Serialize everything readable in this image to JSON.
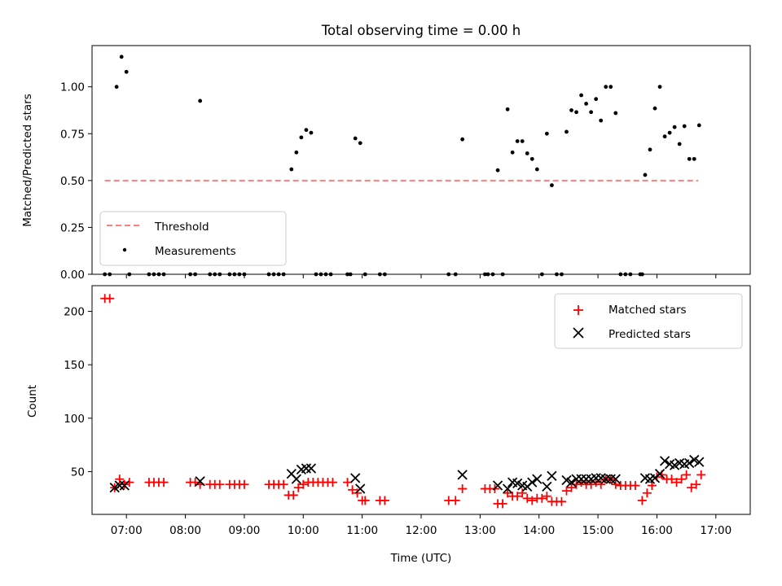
{
  "title": "Total observing time = 0.00 h",
  "chart_data": [
    {
      "type": "scatter",
      "ylabel": "Matched/Predicted stars",
      "ylim": [
        0,
        1.22
      ],
      "xlim": [
        "06:25",
        "17:35"
      ],
      "yticks": [
        0.0,
        0.25,
        0.5,
        0.75,
        1.0
      ],
      "ytick_labels": [
        "0.00",
        "0.25",
        "0.50",
        "0.75",
        "1.00"
      ],
      "legend_position": "lower-left",
      "threshold": {
        "name": "Threshold",
        "value": 0.5,
        "x_start": "06:38",
        "x_end": "16:42",
        "color": "#ff7f7f"
      },
      "series": [
        {
          "name": "Measurements",
          "color": "#000000",
          "points": [
            {
              "x": "06:50",
              "y": 1.0
            },
            {
              "x": "06:55",
              "y": 1.16
            },
            {
              "x": "07:00",
              "y": 1.08
            },
            {
              "x": "08:15",
              "y": 0.925
            },
            {
              "x": "09:48",
              "y": 0.56
            },
            {
              "x": "09:53",
              "y": 0.65
            },
            {
              "x": "09:58",
              "y": 0.73
            },
            {
              "x": "10:03",
              "y": 0.77
            },
            {
              "x": "10:08",
              "y": 0.755
            },
            {
              "x": "10:53",
              "y": 0.725
            },
            {
              "x": "10:58",
              "y": 0.7
            },
            {
              "x": "12:42",
              "y": 0.72
            },
            {
              "x": "13:18",
              "y": 0.555
            },
            {
              "x": "13:28",
              "y": 0.88
            },
            {
              "x": "13:33",
              "y": 0.65
            },
            {
              "x": "13:38",
              "y": 0.71
            },
            {
              "x": "13:43",
              "y": 0.71
            },
            {
              "x": "13:48",
              "y": 0.645
            },
            {
              "x": "13:53",
              "y": 0.615
            },
            {
              "x": "13:58",
              "y": 0.56
            },
            {
              "x": "14:08",
              "y": 0.75
            },
            {
              "x": "14:13",
              "y": 0.475
            },
            {
              "x": "14:28",
              "y": 0.76
            },
            {
              "x": "14:33",
              "y": 0.875
            },
            {
              "x": "14:38",
              "y": 0.865
            },
            {
              "x": "14:43",
              "y": 0.955
            },
            {
              "x": "14:48",
              "y": 0.91
            },
            {
              "x": "14:53",
              "y": 0.865
            },
            {
              "x": "14:58",
              "y": 0.935
            },
            {
              "x": "15:03",
              "y": 0.82
            },
            {
              "x": "15:08",
              "y": 1.0
            },
            {
              "x": "15:13",
              "y": 1.0
            },
            {
              "x": "15:18",
              "y": 0.86
            },
            {
              "x": "15:48",
              "y": 0.53
            },
            {
              "x": "15:53",
              "y": 0.665
            },
            {
              "x": "15:58",
              "y": 0.885
            },
            {
              "x": "16:03",
              "y": 1.0
            },
            {
              "x": "16:08",
              "y": 0.735
            },
            {
              "x": "16:13",
              "y": 0.755
            },
            {
              "x": "16:18",
              "y": 0.785
            },
            {
              "x": "16:23",
              "y": 0.695
            },
            {
              "x": "16:28",
              "y": 0.79
            },
            {
              "x": "16:33",
              "y": 0.615
            },
            {
              "x": "16:38",
              "y": 0.615
            },
            {
              "x": "16:43",
              "y": 0.795
            },
            {
              "x": "06:38",
              "y": 0
            },
            {
              "x": "06:43",
              "y": 0
            },
            {
              "x": "07:03",
              "y": 0
            },
            {
              "x": "07:23",
              "y": 0
            },
            {
              "x": "07:28",
              "y": 0
            },
            {
              "x": "07:33",
              "y": 0
            },
            {
              "x": "07:38",
              "y": 0
            },
            {
              "x": "08:05",
              "y": 0
            },
            {
              "x": "08:10",
              "y": 0
            },
            {
              "x": "08:25",
              "y": 0
            },
            {
              "x": "08:30",
              "y": 0
            },
            {
              "x": "08:35",
              "y": 0
            },
            {
              "x": "08:45",
              "y": 0
            },
            {
              "x": "08:50",
              "y": 0
            },
            {
              "x": "08:55",
              "y": 0
            },
            {
              "x": "09:00",
              "y": 0
            },
            {
              "x": "09:25",
              "y": 0
            },
            {
              "x": "09:30",
              "y": 0
            },
            {
              "x": "09:35",
              "y": 0
            },
            {
              "x": "09:40",
              "y": 0
            },
            {
              "x": "10:13",
              "y": 0
            },
            {
              "x": "10:18",
              "y": 0
            },
            {
              "x": "10:23",
              "y": 0
            },
            {
              "x": "10:28",
              "y": 0
            },
            {
              "x": "10:45",
              "y": 0
            },
            {
              "x": "10:48",
              "y": 0
            },
            {
              "x": "11:03",
              "y": 0
            },
            {
              "x": "11:18",
              "y": 0
            },
            {
              "x": "11:23",
              "y": 0
            },
            {
              "x": "12:28",
              "y": 0
            },
            {
              "x": "12:35",
              "y": 0
            },
            {
              "x": "13:05",
              "y": 0
            },
            {
              "x": "13:08",
              "y": 0
            },
            {
              "x": "13:13",
              "y": 0
            },
            {
              "x": "13:23",
              "y": 0
            },
            {
              "x": "14:03",
              "y": 0
            },
            {
              "x": "14:18",
              "y": 0
            },
            {
              "x": "14:23",
              "y": 0
            },
            {
              "x": "15:23",
              "y": 0
            },
            {
              "x": "15:28",
              "y": 0
            },
            {
              "x": "15:33",
              "y": 0
            },
            {
              "x": "15:43",
              "y": 0
            },
            {
              "x": "15:45",
              "y": 0
            }
          ]
        }
      ]
    },
    {
      "type": "scatter",
      "xlabel": "Time (UTC)",
      "ylabel": "Count",
      "ylim": [
        10,
        224
      ],
      "xlim": [
        "06:25",
        "17:35"
      ],
      "yticks": [
        50,
        100,
        150,
        200
      ],
      "ytick_labels": [
        "50",
        "100",
        "150",
        "200"
      ],
      "xticks": [
        "07:00",
        "08:00",
        "09:00",
        "10:00",
        "11:00",
        "12:00",
        "13:00",
        "14:00",
        "15:00",
        "16:00",
        "17:00"
      ],
      "legend_position": "upper-right",
      "series": [
        {
          "name": "Matched stars",
          "marker": "plus",
          "color": "#ff0000",
          "points": [
            {
              "x": "06:38",
              "y": 212
            },
            {
              "x": "06:43",
              "y": 212
            },
            {
              "x": "06:48",
              "y": 35
            },
            {
              "x": "06:53",
              "y": 43
            },
            {
              "x": "06:58",
              "y": 38
            },
            {
              "x": "07:03",
              "y": 40
            },
            {
              "x": "07:23",
              "y": 40
            },
            {
              "x": "07:28",
              "y": 40
            },
            {
              "x": "07:33",
              "y": 40
            },
            {
              "x": "07:38",
              "y": 40
            },
            {
              "x": "08:05",
              "y": 40
            },
            {
              "x": "08:10",
              "y": 40
            },
            {
              "x": "08:15",
              "y": 38
            },
            {
              "x": "08:25",
              "y": 38
            },
            {
              "x": "08:30",
              "y": 38
            },
            {
              "x": "08:35",
              "y": 38
            },
            {
              "x": "08:45",
              "y": 38
            },
            {
              "x": "08:50",
              "y": 38
            },
            {
              "x": "08:55",
              "y": 38
            },
            {
              "x": "09:00",
              "y": 38
            },
            {
              "x": "09:25",
              "y": 38
            },
            {
              "x": "09:30",
              "y": 38
            },
            {
              "x": "09:35",
              "y": 38
            },
            {
              "x": "09:40",
              "y": 38
            },
            {
              "x": "09:45",
              "y": 28
            },
            {
              "x": "09:50",
              "y": 28
            },
            {
              "x": "09:55",
              "y": 35
            },
            {
              "x": "10:00",
              "y": 38
            },
            {
              "x": "10:05",
              "y": 40
            },
            {
              "x": "10:10",
              "y": 40
            },
            {
              "x": "10:15",
              "y": 40
            },
            {
              "x": "10:20",
              "y": 40
            },
            {
              "x": "10:25",
              "y": 40
            },
            {
              "x": "10:30",
              "y": 40
            },
            {
              "x": "10:45",
              "y": 40
            },
            {
              "x": "10:50",
              "y": 33
            },
            {
              "x": "10:55",
              "y": 30
            },
            {
              "x": "11:00",
              "y": 23
            },
            {
              "x": "11:03",
              "y": 23
            },
            {
              "x": "11:18",
              "y": 23
            },
            {
              "x": "11:23",
              "y": 23
            },
            {
              "x": "12:28",
              "y": 23
            },
            {
              "x": "12:35",
              "y": 23
            },
            {
              "x": "12:42",
              "y": 34
            },
            {
              "x": "13:05",
              "y": 34
            },
            {
              "x": "13:10",
              "y": 34
            },
            {
              "x": "13:15",
              "y": 34
            },
            {
              "x": "13:18",
              "y": 20
            },
            {
              "x": "13:23",
              "y": 20
            },
            {
              "x": "13:28",
              "y": 30
            },
            {
              "x": "13:33",
              "y": 27
            },
            {
              "x": "13:38",
              "y": 27
            },
            {
              "x": "13:43",
              "y": 30
            },
            {
              "x": "13:48",
              "y": 25
            },
            {
              "x": "13:53",
              "y": 23
            },
            {
              "x": "13:58",
              "y": 25
            },
            {
              "x": "14:03",
              "y": 25
            },
            {
              "x": "14:08",
              "y": 27
            },
            {
              "x": "14:13",
              "y": 22
            },
            {
              "x": "14:18",
              "y": 22
            },
            {
              "x": "14:23",
              "y": 22
            },
            {
              "x": "14:28",
              "y": 32
            },
            {
              "x": "14:33",
              "y": 35
            },
            {
              "x": "14:38",
              "y": 38
            },
            {
              "x": "14:43",
              "y": 40
            },
            {
              "x": "14:48",
              "y": 38
            },
            {
              "x": "14:53",
              "y": 38
            },
            {
              "x": "14:58",
              "y": 40
            },
            {
              "x": "15:03",
              "y": 38
            },
            {
              "x": "15:08",
              "y": 43
            },
            {
              "x": "15:13",
              "y": 43
            },
            {
              "x": "15:18",
              "y": 38
            },
            {
              "x": "15:23",
              "y": 37
            },
            {
              "x": "15:28",
              "y": 37
            },
            {
              "x": "15:33",
              "y": 37
            },
            {
              "x": "15:38",
              "y": 37
            },
            {
              "x": "15:45",
              "y": 23
            },
            {
              "x": "15:50",
              "y": 30
            },
            {
              "x": "15:55",
              "y": 37
            },
            {
              "x": "16:00",
              "y": 45
            },
            {
              "x": "16:05",
              "y": 47
            },
            {
              "x": "16:10",
              "y": 43
            },
            {
              "x": "16:15",
              "y": 43
            },
            {
              "x": "16:20",
              "y": 40
            },
            {
              "x": "16:25",
              "y": 43
            },
            {
              "x": "16:30",
              "y": 47
            },
            {
              "x": "16:35",
              "y": 35
            },
            {
              "x": "16:40",
              "y": 38
            },
            {
              "x": "16:45",
              "y": 47
            }
          ]
        },
        {
          "name": "Predicted stars",
          "marker": "x",
          "color": "#000000",
          "points": [
            {
              "x": "06:48",
              "y": 35
            },
            {
              "x": "06:53",
              "y": 37
            },
            {
              "x": "06:58",
              "y": 37
            },
            {
              "x": "08:15",
              "y": 41
            },
            {
              "x": "09:48",
              "y": 48
            },
            {
              "x": "09:53",
              "y": 43
            },
            {
              "x": "09:58",
              "y": 52
            },
            {
              "x": "10:03",
              "y": 53
            },
            {
              "x": "10:08",
              "y": 53
            },
            {
              "x": "10:53",
              "y": 44
            },
            {
              "x": "10:58",
              "y": 34
            },
            {
              "x": "12:42",
              "y": 47
            },
            {
              "x": "13:18",
              "y": 37
            },
            {
              "x": "13:28",
              "y": 34
            },
            {
              "x": "13:33",
              "y": 40
            },
            {
              "x": "13:38",
              "y": 39
            },
            {
              "x": "13:43",
              "y": 37
            },
            {
              "x": "13:48",
              "y": 36
            },
            {
              "x": "13:53",
              "y": 40
            },
            {
              "x": "13:58",
              "y": 43
            },
            {
              "x": "14:08",
              "y": 36
            },
            {
              "x": "14:13",
              "y": 46
            },
            {
              "x": "14:28",
              "y": 42
            },
            {
              "x": "14:33",
              "y": 40
            },
            {
              "x": "14:38",
              "y": 43
            },
            {
              "x": "14:43",
              "y": 43
            },
            {
              "x": "14:48",
              "y": 43
            },
            {
              "x": "14:53",
              "y": 43
            },
            {
              "x": "14:58",
              "y": 44
            },
            {
              "x": "15:03",
              "y": 44
            },
            {
              "x": "15:08",
              "y": 43
            },
            {
              "x": "15:13",
              "y": 43
            },
            {
              "x": "15:18",
              "y": 43
            },
            {
              "x": "15:48",
              "y": 44
            },
            {
              "x": "15:53",
              "y": 43
            },
            {
              "x": "15:58",
              "y": 44
            },
            {
              "x": "16:03",
              "y": 48
            },
            {
              "x": "16:08",
              "y": 60
            },
            {
              "x": "16:13",
              "y": 57
            },
            {
              "x": "16:18",
              "y": 56
            },
            {
              "x": "16:23",
              "y": 58
            },
            {
              "x": "16:28",
              "y": 57
            },
            {
              "x": "16:33",
              "y": 58
            },
            {
              "x": "16:38",
              "y": 61
            },
            {
              "x": "16:43",
              "y": 59
            }
          ]
        }
      ]
    }
  ]
}
